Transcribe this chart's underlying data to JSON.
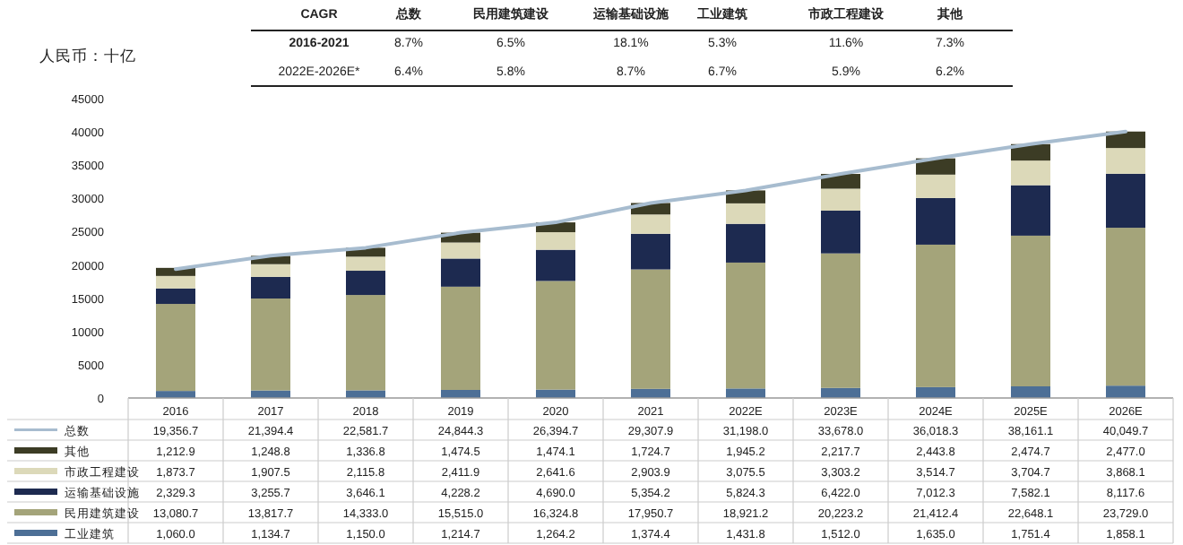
{
  "chart_data": {
    "type": "bar",
    "stacked": true,
    "ylabel": "人民币：十亿",
    "legend": "bottom",
    "categories": [
      "2016",
      "2017",
      "2018",
      "2019",
      "2020",
      "2021",
      "2022E",
      "2023E",
      "2024E",
      "2025E",
      "2026E"
    ],
    "ylim": [
      0,
      45000
    ],
    "yticks": [
      0,
      5000,
      10000,
      15000,
      20000,
      25000,
      30000,
      35000,
      40000,
      45000
    ],
    "series": [
      {
        "name": "工业建筑",
        "color": "#4d6f96",
        "values": [
          1060.0,
          1134.7,
          1150.0,
          1214.7,
          1264.2,
          1374.4,
          1431.8,
          1512.0,
          1635.0,
          1751.4,
          1858.1
        ],
        "value_labels": [
          "1,060.0",
          "1,134.7",
          "1,150.0",
          "1,214.7",
          "1,264.2",
          "1,374.4",
          "1,431.8",
          "1,512.0",
          "1,635.0",
          "1,751.4",
          "1,858.1"
        ]
      },
      {
        "name": "民用建筑建设",
        "color": "#a4a47a",
        "values": [
          13080.7,
          13817.7,
          14333.0,
          15515.0,
          16324.8,
          17950.7,
          18921.2,
          20223.2,
          21412.4,
          22648.1,
          23729.0
        ],
        "value_labels": [
          "13,080.7",
          "13,817.7",
          "14,333.0",
          "15,515.0",
          "16,324.8",
          "17,950.7",
          "18,921.2",
          "20,223.2",
          "21,412.4",
          "22,648.1",
          "23,729.0"
        ]
      },
      {
        "name": "运输基础设施",
        "color": "#1d2a50",
        "values": [
          2329.3,
          3255.7,
          3646.1,
          4228.2,
          4690.0,
          5354.2,
          5824.3,
          6422.0,
          7012.3,
          7582.1,
          8117.6
        ],
        "value_labels": [
          "2,329.3",
          "3,255.7",
          "3,646.1",
          "4,228.2",
          "4,690.0",
          "5,354.2",
          "5,824.3",
          "6,422.0",
          "7,012.3",
          "7,582.1",
          "8,117.6"
        ]
      },
      {
        "name": "市政工程建设",
        "color": "#dcd9b9",
        "values": [
          1873.7,
          1907.5,
          2115.8,
          2411.9,
          2641.6,
          2903.9,
          3075.5,
          3303.2,
          3514.7,
          3704.7,
          3868.1
        ],
        "value_labels": [
          "1,873.7",
          "1,907.5",
          "2,115.8",
          "2,411.9",
          "2,641.6",
          "2,903.9",
          "3,075.5",
          "3,303.2",
          "3,514.7",
          "3,704.7",
          "3,868.1"
        ]
      },
      {
        "name": "其他",
        "color": "#3c3c25",
        "values": [
          1212.9,
          1248.8,
          1336.8,
          1474.5,
          1474.1,
          1724.7,
          1945.2,
          2217.7,
          2443.8,
          2474.7,
          2477.0
        ],
        "value_labels": [
          "1,212.9",
          "1,248.8",
          "1,336.8",
          "1,474.5",
          "1,474.1",
          "1,724.7",
          "1,945.2",
          "2,217.7",
          "2,443.8",
          "2,474.7",
          "2,477.0"
        ]
      },
      {
        "name": "总数",
        "type": "line",
        "color": "#a7bccf",
        "values": [
          19356.7,
          21394.4,
          22581.7,
          24844.3,
          26394.7,
          29307.9,
          31198.0,
          33678.0,
          36018.3,
          38161.1,
          40049.7
        ],
        "value_labels": [
          "19,356.7",
          "21,394.4",
          "22,581.7",
          "24,844.3",
          "26,394.7",
          "29,307.9",
          "31,198.0",
          "33,678.0",
          "36,018.3",
          "38,161.1",
          "40,049.7"
        ]
      }
    ],
    "annotations": [
      "CAGR",
      "总数",
      "民用建筑建设",
      "运输基础设施",
      "工业建筑",
      "市政工程建设",
      "其他",
      "2016-2021",
      "8.7%",
      "6.5%",
      "18.1%",
      "5.3%",
      "11.6%",
      "7.3%",
      "2022E-2026E*",
      "6.4%",
      "5.8%",
      "8.7%",
      "6.7%",
      "5.9%",
      "6.2%"
    ]
  }
}
